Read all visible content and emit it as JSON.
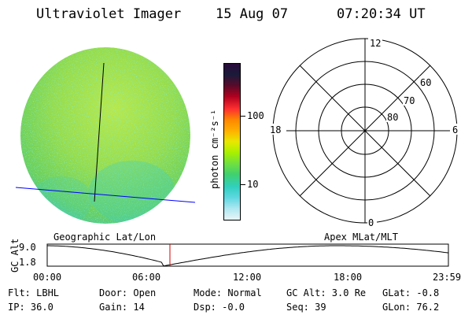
{
  "header": {
    "instrument": "Ultraviolet Imager",
    "date": "15 Aug 07",
    "time": "07:20:34 UT"
  },
  "colorbar": {
    "label": "photon cm⁻²s⁻¹",
    "ticks": [
      "100",
      "10"
    ],
    "colors": [
      "#2a0a3a",
      "#1a1a3a",
      "#5a0a2a",
      "#b00020",
      "#ff3030",
      "#ff8800",
      "#ffb000",
      "#e8e800",
      "#a8f000",
      "#70e040",
      "#40d070",
      "#30d0c0",
      "#60d8e0",
      "#b0e8f0",
      "#e8f4f8"
    ]
  },
  "polar": {
    "mlt_labels": {
      "top": "12",
      "left": "18",
      "right": "6",
      "bottom": "0"
    },
    "lat_labels": [
      "60",
      "70",
      "80"
    ]
  },
  "timeline": {
    "left_title": "Geographic Lat/Lon",
    "right_title": "Apex MLat/MLT",
    "y_axis_label": "GC Alt",
    "y_ticks": [
      "9.0",
      "1.8"
    ],
    "x_ticks": [
      "00:00",
      "06:00",
      "12:00",
      "18:00",
      "23:59"
    ],
    "marker_time_hours": 7.34,
    "marker_color": "#d00000"
  },
  "status": {
    "row1": {
      "flt": "Flt: LBHL",
      "door": "Door: Open",
      "mode": "Mode: Normal",
      "gcalt": "GC Alt: 3.0 Re",
      "glat": "GLat:  -0.8"
    },
    "row2": {
      "ip": "IP: 36.0",
      "gain": "Gain: 14",
      "dsp": "Dsp:   -0.0",
      "seq": "Seq: 39",
      "glon": "GLon:  76.2"
    }
  },
  "image_colors": {
    "disk_base": "#9ee04a",
    "disk_green": "#6ed04a",
    "disk_cyan": "#40d0c0",
    "grid_lat": "#0000ff",
    "grid_lon": "#000000"
  }
}
